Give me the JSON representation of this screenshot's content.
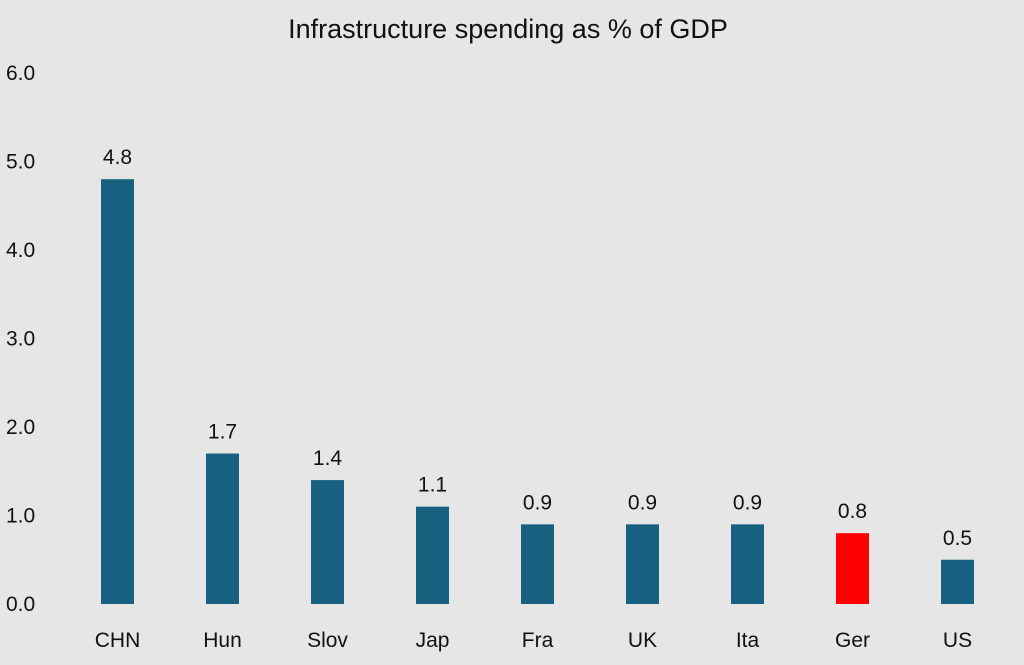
{
  "chart_data": {
    "type": "bar",
    "title": "Infrastructure spending as % of GDP",
    "xlabel": "",
    "ylabel": "",
    "categories": [
      "CHN",
      "Hun",
      "Slov",
      "Jap",
      "Fra",
      "UK",
      "Ita",
      "Ger",
      "US"
    ],
    "values": [
      4.8,
      1.7,
      1.4,
      1.1,
      0.9,
      0.9,
      0.9,
      0.8,
      0.5
    ],
    "data_labels": [
      "4.8",
      "1.7",
      "1.4",
      "1.1",
      "0.9",
      "0.9",
      "0.9",
      "0.8",
      "0.5"
    ],
    "ylim": [
      0,
      6
    ],
    "yticks": [
      "0.0",
      "1.0",
      "2.0",
      "3.0",
      "4.0",
      "5.0",
      "6.0"
    ],
    "grid": false,
    "legend": "none",
    "colors": {
      "default_bar": "#17607f",
      "highlight_bar": "#ff0000",
      "highlight_category": "Ger",
      "background": "#e6e6e6"
    }
  }
}
